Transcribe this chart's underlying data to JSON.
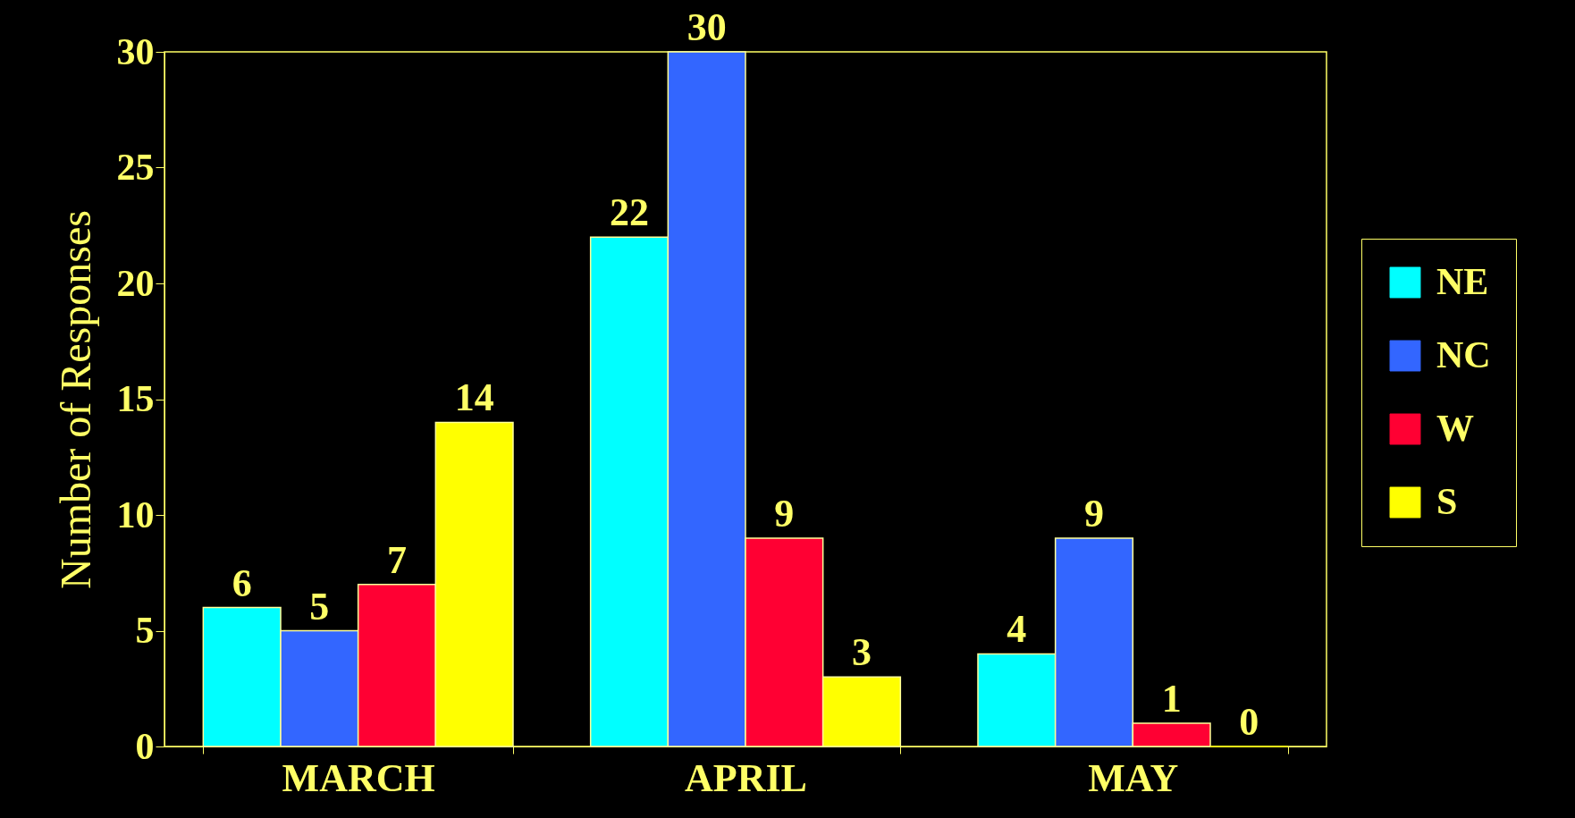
{
  "chart_data": {
    "type": "bar",
    "ylabel": "Number of Responses",
    "categories": [
      "MARCH",
      "APRIL",
      "MAY"
    ],
    "series": [
      {
        "name": "NE",
        "color": "#00ffff",
        "values": [
          6,
          22,
          4
        ]
      },
      {
        "name": "NC",
        "color": "#3366ff",
        "values": [
          5,
          30,
          9
        ]
      },
      {
        "name": "W",
        "color": "#ff0033",
        "values": [
          7,
          9,
          1
        ]
      },
      {
        "name": "S",
        "color": "#ffff00",
        "values": [
          14,
          3,
          0
        ]
      }
    ],
    "ylim": [
      0,
      30
    ],
    "yticks": [
      0,
      5,
      10,
      15,
      20,
      25,
      30
    ],
    "data_labels": true,
    "legend": "right",
    "grid": false
  }
}
